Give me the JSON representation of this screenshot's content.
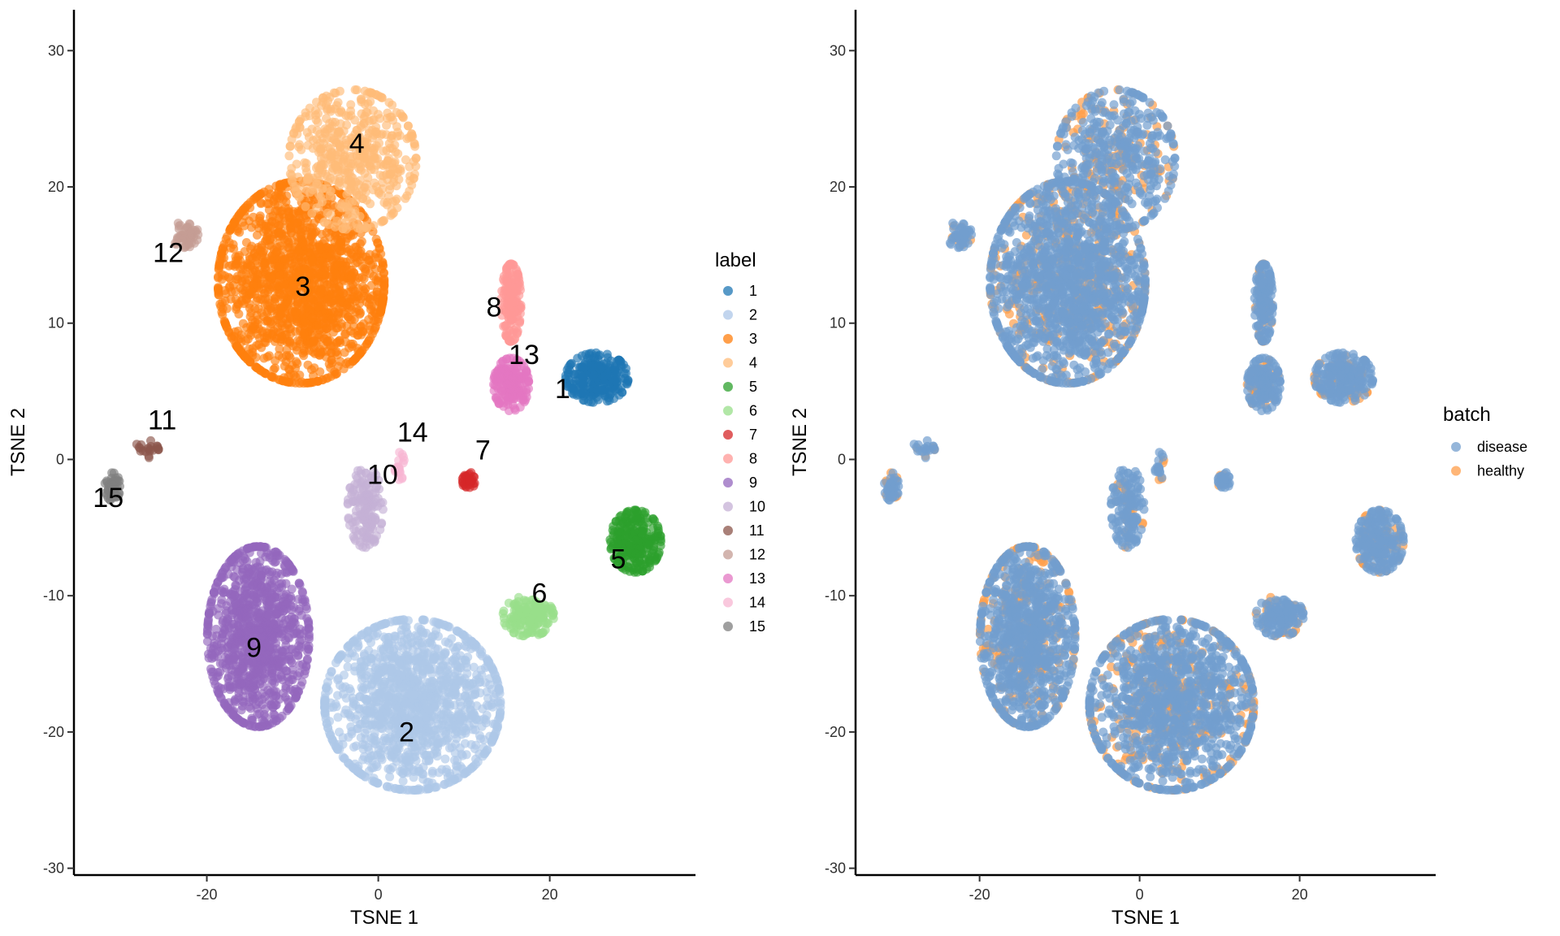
{
  "chart_data": [
    {
      "type": "scatter",
      "xlabel": "TSNE 1",
      "ylabel": "TSNE 2",
      "xlim": [
        -35.5,
        37
      ],
      "ylim": [
        -30.5,
        33
      ],
      "xticks": [
        -20,
        0,
        20
      ],
      "yticks": [
        -30,
        -20,
        -10,
        0,
        10,
        20,
        30
      ],
      "grid": false,
      "legend": {
        "title": "label",
        "position": "right"
      },
      "clusters": [
        {
          "name": "1",
          "color": "#1f77b4",
          "center": [
            25.5,
            6.0
          ],
          "spread": [
            3.2,
            1.6
          ],
          "count": 260
        },
        {
          "name": "2",
          "color": "#aec7e8",
          "center": [
            4.0,
            -18.0
          ],
          "spread": [
            9.0,
            5.5
          ],
          "count": 1300
        },
        {
          "name": "3",
          "color": "#ff7f0e",
          "center": [
            -9.0,
            13.0
          ],
          "spread": [
            8.5,
            6.5
          ],
          "count": 1600
        },
        {
          "name": "4",
          "color": "#ffbb78",
          "center": [
            -3.0,
            22.0
          ],
          "spread": [
            6.5,
            4.5
          ],
          "count": 500
        },
        {
          "name": "5",
          "color": "#2ca02c",
          "center": [
            30.0,
            -6.0
          ],
          "spread": [
            2.6,
            2.0
          ],
          "count": 260
        },
        {
          "name": "6",
          "color": "#98df8a",
          "center": [
            17.5,
            -11.5
          ],
          "spread": [
            2.6,
            1.3
          ],
          "count": 150
        },
        {
          "name": "7",
          "color": "#d62728",
          "center": [
            10.5,
            -1.5
          ],
          "spread": [
            0.9,
            0.5
          ],
          "count": 30
        },
        {
          "name": "8",
          "color": "#ff9896",
          "center": [
            15.5,
            11.5
          ],
          "spread": [
            1.0,
            2.5
          ],
          "count": 180
        },
        {
          "name": "9",
          "color": "#9467bd",
          "center": [
            -14.0,
            -13.0
          ],
          "spread": [
            5.2,
            5.8
          ],
          "count": 1000
        },
        {
          "name": "10",
          "color": "#c5b0d5",
          "center": [
            -1.5,
            -3.5
          ],
          "spread": [
            1.8,
            2.6
          ],
          "count": 150
        },
        {
          "name": "11",
          "color": "#8c564b",
          "center": [
            -27.0,
            0.8
          ],
          "spread": [
            1.2,
            0.6
          ],
          "count": 22
        },
        {
          "name": "12",
          "color": "#c49c94",
          "center": [
            -22.5,
            16.5
          ],
          "spread": [
            1.3,
            0.9
          ],
          "count": 50
        },
        {
          "name": "13",
          "color": "#e377c2",
          "center": [
            15.5,
            5.5
          ],
          "spread": [
            1.8,
            1.7
          ],
          "count": 180
        },
        {
          "name": "14",
          "color": "#f7b6d2",
          "center": [
            2.5,
            -0.5
          ],
          "spread": [
            0.5,
            0.9
          ],
          "count": 20
        },
        {
          "name": "15",
          "color": "#7f7f7f",
          "center": [
            -31.0,
            -2.0
          ],
          "spread": [
            0.8,
            0.9
          ],
          "count": 50
        }
      ],
      "annotations": [
        {
          "text": "1",
          "x": 21.5,
          "y": 4.5
        },
        {
          "text": "2",
          "x": 3.3,
          "y": -20.7
        },
        {
          "text": "3",
          "x": -8.8,
          "y": 12.0
        },
        {
          "text": "4",
          "x": -2.5,
          "y": 22.5
        },
        {
          "text": "5",
          "x": 28.0,
          "y": -8.0
        },
        {
          "text": "6",
          "x": 18.8,
          "y": -10.5
        },
        {
          "text": "7",
          "x": 12.2,
          "y": 0.0
        },
        {
          "text": "8",
          "x": 13.5,
          "y": 10.5
        },
        {
          "text": "9",
          "x": -14.5,
          "y": -14.5
        },
        {
          "text": "10",
          "x": 0.5,
          "y": -1.8
        },
        {
          "text": "11",
          "x": -25.2,
          "y": 2.2
        },
        {
          "text": "12",
          "x": -24.5,
          "y": 14.5
        },
        {
          "text": "13",
          "x": 17.0,
          "y": 7.0
        },
        {
          "text": "14",
          "x": 4.0,
          "y": 1.3
        },
        {
          "text": "15",
          "x": -31.5,
          "y": -3.5
        }
      ]
    },
    {
      "type": "scatter",
      "xlabel": "TSNE 1",
      "ylabel": "TSNE 2",
      "xlim": [
        -35.5,
        37
      ],
      "ylim": [
        -30.5,
        33
      ],
      "xticks": [
        -20,
        0,
        20
      ],
      "yticks": [
        -30,
        -20,
        -10,
        0,
        10,
        20,
        30
      ],
      "grid": false,
      "legend": {
        "title": "batch",
        "position": "right"
      },
      "series": [
        {
          "name": "disease",
          "color": "#729ece"
        },
        {
          "name": "healthy",
          "color": "#ff9e4a"
        }
      ],
      "healthy_fraction": 0.22
    }
  ]
}
